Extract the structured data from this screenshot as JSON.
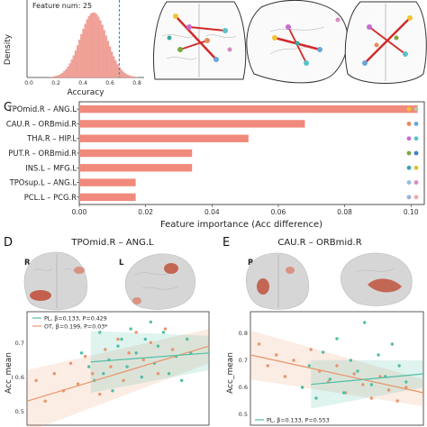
{
  "panel_labels": {
    "c": "C",
    "d": "D",
    "e": "E"
  },
  "hist": {
    "feature_text": "Feature num: 25",
    "ylabel": "Density",
    "xlabel": "Accuracy",
    "xticks": [
      "0.0",
      "0.2",
      "0.4",
      "0.6",
      "0.8"
    ]
  },
  "importance": {
    "xlabel": "Feature importance (Acc difference)",
    "xticks": [
      "0.00",
      "0.02",
      "0.04",
      "0.06",
      "0.08",
      "0.10"
    ]
  },
  "panel_d": {
    "title": "TPOmid.R – ANG.L",
    "hemi_right": "R",
    "hemi_left": "L",
    "ylabel": "Acc_mean",
    "yticks": [
      "0.7",
      "0.6",
      "0.5"
    ],
    "legend_pl": "PL, β=0.133, P=0.429",
    "legend_ot": "OT, β=0.199, P=0.03*"
  },
  "panel_e": {
    "title": "CAU.R – ORBmid.R",
    "hemi_right": "R",
    "ylabel": "Acc_mean",
    "yticks": [
      "0.8",
      "0.7",
      "0.6",
      "0.5"
    ],
    "legend_pl": "PL, β=0.133, P=0.553"
  },
  "colors": {
    "bar": "#f08a7c",
    "pl": "#4fbfa5",
    "ot": "#e8956a",
    "hist": "#f2a39a",
    "dash": "#3f8fd8",
    "brain": "#d6d6d6",
    "lesion": "#c0533e"
  },
  "chart_data": [
    {
      "type": "bar",
      "orientation": "horizontal",
      "xlabel": "Feature importance (Acc difference)",
      "xlim": [
        0,
        0.104
      ],
      "categories": [
        "TPOmid.R – ANG.L",
        "CAU.R – ORBmid.R",
        "THA.R – HIP.L",
        "PUT.R – ORBmid.R",
        "INS.L – MFG.L",
        "TPOsup.L – ANG.L",
        "PCL.L – PCG.R"
      ],
      "values": [
        0.102,
        0.068,
        0.051,
        0.034,
        0.034,
        0.017,
        0.017
      ],
      "dots": [
        [
          "#f1c232",
          "#b8c8a0"
        ],
        [
          "#e58a5c",
          "#6aa6d8"
        ],
        [
          "#c76ad0",
          "#58c2c8"
        ],
        [
          "#7aa83c",
          "#3f7fc8"
        ],
        [
          "#3aa7a0",
          "#d7c230"
        ],
        [
          "#8ec0e4",
          "#d88ac0"
        ],
        [
          "#9ab0e0",
          "#f0a8a8"
        ]
      ]
    },
    {
      "type": "area",
      "title": "Feature num: 25",
      "xlabel": "Accuracy",
      "ylabel": "Density",
      "xlim": [
        0,
        0.85
      ],
      "mean": 0.48,
      "sd": 0.1,
      "dashed_x": 0.67
    },
    {
      "type": "scatter",
      "title": "TPOmid.R – ANG.L",
      "ylabel": "Acc_mean",
      "ylim": [
        0.45,
        0.78
      ],
      "series": [
        {
          "name": "PL, β=0.133, P=0.429",
          "fit": [
            0.62,
            0.66
          ],
          "x": [
            0.3,
            0.34,
            0.37,
            0.4,
            0.42,
            0.45,
            0.47,
            0.5,
            0.52,
            0.55,
            0.57,
            0.6,
            0.63,
            0.65,
            0.68,
            0.7,
            0.72,
            0.75,
            0.78,
            0.82,
            0.85,
            0.88,
            0.9
          ],
          "y": [
            0.66,
            0.62,
            0.58,
            0.72,
            0.6,
            0.64,
            0.55,
            0.68,
            0.7,
            0.62,
            0.73,
            0.66,
            0.59,
            0.7,
            0.75,
            0.63,
            0.68,
            0.72,
            0.6,
            0.65,
            0.58,
            0.7,
            0.66
          ]
        },
        {
          "name": "OT, β=0.199, P=0.03*",
          "fit": [
            0.52,
            0.68
          ],
          "x": [
            0.05,
            0.1,
            0.15,
            0.2,
            0.24,
            0.28,
            0.32,
            0.36,
            0.4,
            0.43,
            0.46,
            0.5,
            0.53,
            0.56,
            0.6,
            0.64,
            0.68,
            0.72,
            0.76,
            0.8
          ],
          "y": [
            0.58,
            0.52,
            0.6,
            0.55,
            0.63,
            0.57,
            0.65,
            0.6,
            0.54,
            0.67,
            0.62,
            0.7,
            0.58,
            0.66,
            0.72,
            0.64,
            0.69,
            0.6,
            0.73,
            0.67
          ]
        }
      ]
    },
    {
      "type": "scatter",
      "title": "CAU.R – ORBmid.R",
      "ylabel": "Acc_mean",
      "ylim": [
        0.48,
        0.9
      ],
      "series": [
        {
          "name": "PL, β=0.133, P=0.553",
          "fit": [
            0.61,
            0.67
          ],
          "x": [
            0.3,
            0.34,
            0.38,
            0.42,
            0.46,
            0.5,
            0.54,
            0.58,
            0.62,
            0.66,
            0.7,
            0.74,
            0.78,
            0.82,
            0.86,
            0.9
          ],
          "y": [
            0.62,
            0.7,
            0.58,
            0.75,
            0.65,
            0.8,
            0.6,
            0.72,
            0.68,
            0.86,
            0.63,
            0.74,
            0.66,
            0.78,
            0.7,
            0.64
          ]
        },
        {
          "name": "",
          "fit": [
            0.74,
            0.6
          ],
          "x": [
            0.05,
            0.1,
            0.15,
            0.2,
            0.25,
            0.3,
            0.35,
            0.4,
            0.45,
            0.5,
            0.55,
            0.6,
            0.65,
            0.7,
            0.75,
            0.8,
            0.85,
            0.9
          ],
          "y": [
            0.78,
            0.7,
            0.74,
            0.66,
            0.72,
            0.62,
            0.76,
            0.68,
            0.64,
            0.7,
            0.6,
            0.67,
            0.63,
            0.58,
            0.66,
            0.61,
            0.57,
            0.62
          ]
        }
      ]
    }
  ]
}
